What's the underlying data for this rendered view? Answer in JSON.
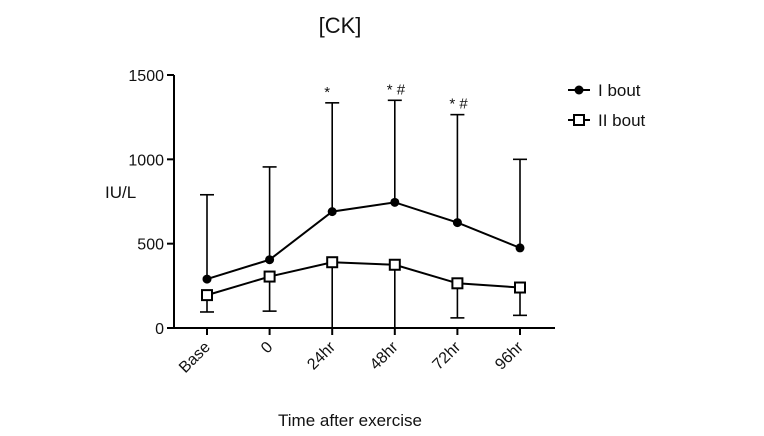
{
  "chart_data": {
    "type": "line",
    "title": "[CK]",
    "xlabel": "Time after exercise",
    "ylabel": "IU/L",
    "categories": [
      "Base",
      "0",
      "24hr",
      "48hr",
      "72hr",
      "96hr"
    ],
    "ylim": [
      0,
      1500
    ],
    "yticks": [
      0,
      500,
      1000,
      1500
    ],
    "legend_position": "top-right",
    "grid": false,
    "series": [
      {
        "name": "I bout",
        "marker": "filled-circle",
        "color": "#000000",
        "values": [
          290,
          405,
          690,
          745,
          625,
          475
        ],
        "error_upper": [
          790,
          955,
          1335,
          1350,
          1265,
          1000
        ],
        "error_direction": "up"
      },
      {
        "name": "II bout",
        "marker": "open-square",
        "color": "#000000",
        "values": [
          195,
          305,
          390,
          375,
          265,
          240
        ],
        "error_lower": [
          95,
          100,
          0,
          0,
          60,
          75
        ],
        "error_direction": "down"
      }
    ],
    "annotations": [
      {
        "category": "24hr",
        "text": "*"
      },
      {
        "category": "48hr",
        "text": "* #"
      },
      {
        "category": "72hr",
        "text": "* #"
      }
    ]
  }
}
